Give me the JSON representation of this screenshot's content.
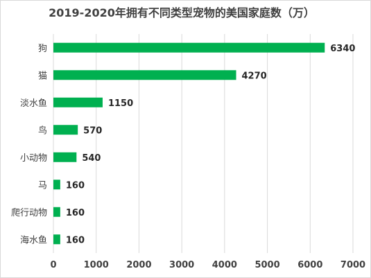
{
  "chart_data": {
    "type": "bar",
    "orientation": "horizontal",
    "title": "2019-2020年拥有不同类型宠物的美国家庭数（万）",
    "categories": [
      "狗",
      "猫",
      "淡水鱼",
      "鸟",
      "小动物",
      "马",
      "爬行动物",
      "海水鱼"
    ],
    "values": [
      6340,
      4270,
      1150,
      570,
      540,
      160,
      160,
      160
    ],
    "data_labels": [
      "6340",
      "4270",
      "1150",
      "570",
      "540",
      "160",
      "160",
      "160"
    ],
    "xlim": [
      0,
      7000
    ],
    "x_ticks": [
      0,
      1000,
      2000,
      3000,
      4000,
      5000,
      6000,
      7000
    ],
    "x_tick_labels": [
      "0",
      "1000",
      "2000",
      "3000",
      "4000",
      "5000",
      "6000",
      "7000"
    ],
    "grid": "vertical",
    "legend": "none",
    "bar_color": "#00b050"
  }
}
